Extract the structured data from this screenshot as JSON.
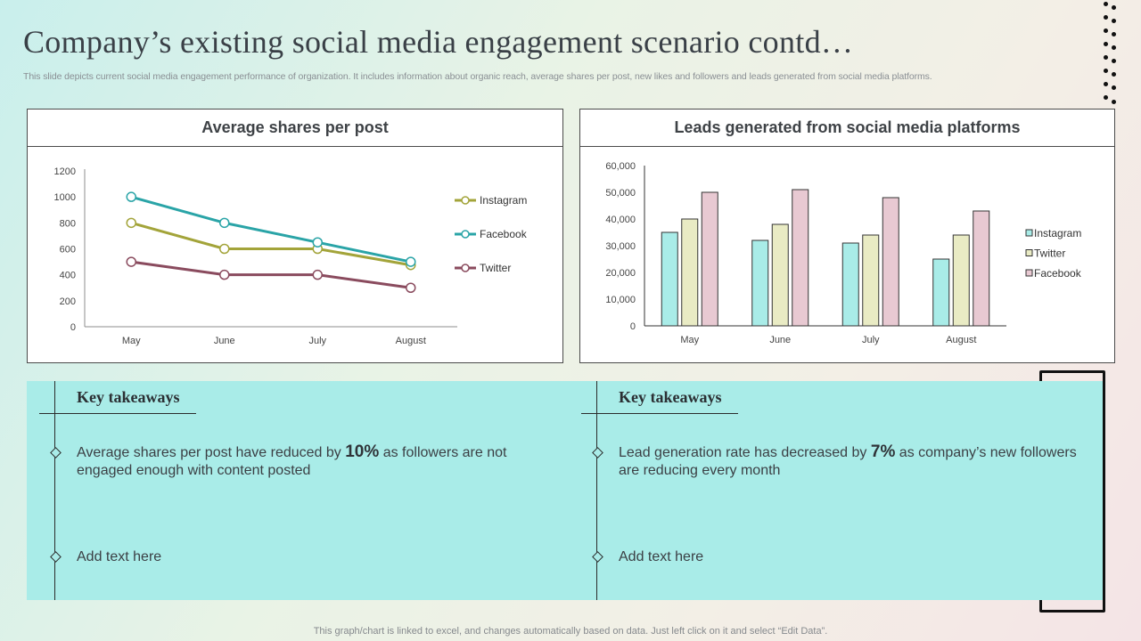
{
  "title": "Company’s existing social media engagement scenario contd…",
  "subtitle": "This slide depicts current social media engagement performance of organization. It includes information about organic reach, average shares per post, new likes and followers and leads generated from social media platforms.",
  "footer": "This graph/chart is linked to excel,  and changes automatically based on data. Just left click on it and select “Edit Data”.",
  "colors": {
    "instagram_line": "#a3a43a",
    "facebook_line": "#2aa4a7",
    "twitter_line": "#8a4b5e",
    "instagram_bar": "#a9ece8",
    "twitter_bar": "#e9ebc4",
    "facebook_bar": "#e8c9d2",
    "takeaway_bg": "#a9ece8"
  },
  "chart_data": [
    {
      "type": "line",
      "title": "Average shares per post",
      "categories": [
        "May",
        "June",
        "July",
        "August"
      ],
      "ylim": [
        0,
        1200
      ],
      "yticks": [
        "0",
        "200",
        "400",
        "600",
        "800",
        "1000",
        "1200"
      ],
      "legend_position": "right",
      "series": [
        {
          "name": "Instagram",
          "values": [
            800,
            600,
            600,
            475
          ]
        },
        {
          "name": "Facebook",
          "values": [
            1000,
            800,
            650,
            500
          ]
        },
        {
          "name": "Twitter",
          "values": [
            500,
            400,
            400,
            300
          ]
        }
      ]
    },
    {
      "type": "bar",
      "title": "Leads generated from social media platforms",
      "categories": [
        "May",
        "June",
        "July",
        "August"
      ],
      "ylim": [
        0,
        60000
      ],
      "yticks": [
        "0",
        "10,000",
        "20,000",
        "30,000",
        "40,000",
        "50,000",
        "60,000"
      ],
      "legend_position": "right",
      "series": [
        {
          "name": "Instagram",
          "values": [
            35000,
            32000,
            31000,
            25000
          ]
        },
        {
          "name": "Twitter",
          "values": [
            40000,
            38000,
            34000,
            34000
          ]
        },
        {
          "name": "Facebook",
          "values": [
            50000,
            51000,
            48000,
            43000
          ]
        }
      ]
    }
  ],
  "takeaways": [
    {
      "heading": "Key takeaways",
      "point1_before": "Average shares per post have reduced by ",
      "point1_highlight": "10%",
      "point1_after": " as followers are not engaged enough with content posted",
      "point2": "Add text here"
    },
    {
      "heading": "Key takeaways",
      "point1_before": "Lead generation rate has decreased by ",
      "point1_highlight": "7%",
      "point1_after": " as company’s new followers are reducing every month",
      "point2": "Add text here"
    }
  ]
}
